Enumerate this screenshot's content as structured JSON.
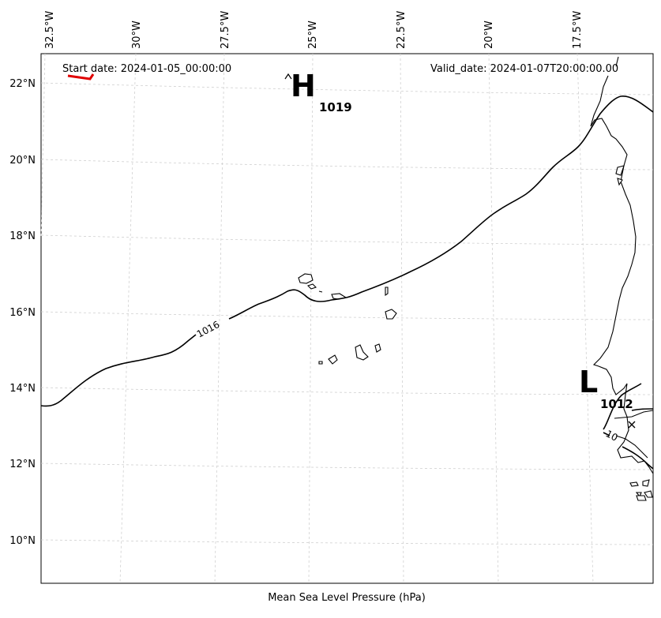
{
  "map": {
    "start_date": "Start date: 2024-01-05_00:00:00",
    "valid_date": "Valid_date: 2024-01-07T20:00:00.00",
    "caption": "Mean Sea Level Pressure (hPa)",
    "lon_labels": [
      "32.5°W",
      "30°W",
      "27.5°W",
      "25°W",
      "22.5°W",
      "20°W",
      "17.5°W"
    ],
    "lat_labels": [
      "22°N",
      "20°N",
      "18°N",
      "16°N",
      "14°N",
      "12°N",
      "10°N"
    ],
    "high": {
      "letter": "H",
      "value": "1019"
    },
    "low": {
      "letter": "L",
      "value": "1012"
    },
    "contour_1016": "1016",
    "contour_small": "10",
    "colors": {
      "coast": "#000000",
      "isobar": "#000000",
      "grid": "#cccccc",
      "wind": "#e00000"
    }
  }
}
